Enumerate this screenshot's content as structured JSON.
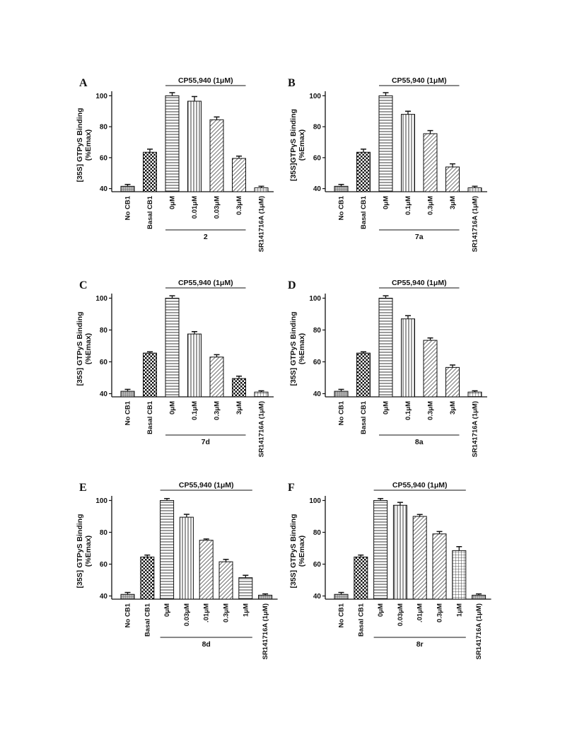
{
  "chart_data": [
    {
      "type": "bar",
      "panel": "A",
      "ylabel_line1": "[35S] GTPyS Binding",
      "ylabel_line2": "(%Emax)",
      "ylim": [
        38,
        102
      ],
      "yticks": [
        40,
        60,
        80,
        100
      ],
      "bracket_label": "CP55,940 (1μM)",
      "group_label": "2",
      "categories": [
        "No CB1",
        "Basal CB1",
        "0μM",
        "0.01μM",
        "0.03μM",
        "0.3μM",
        "SR141716A (1μM)"
      ],
      "values": [
        41.5,
        63.5,
        100,
        96.5,
        84.5,
        59.5,
        40.5
      ],
      "errors": [
        1.2,
        2,
        2,
        3,
        1.8,
        1.5,
        1
      ],
      "patterns": [
        "fine",
        "check",
        "hstripe",
        "vstripe",
        "diag",
        "diag",
        "grid"
      ]
    },
    {
      "type": "bar",
      "panel": "B",
      "ylabel_line1": "[35S]GTPγS Binding",
      "ylabel_line2": "(%Emax)",
      "ylim": [
        38,
        102
      ],
      "yticks": [
        40,
        60,
        80,
        100
      ],
      "bracket_label": "CP55,940 (1μM)",
      "group_label": "7a",
      "categories": [
        "No CB1",
        "Basal CB1",
        "0μM",
        "0.1μM",
        "0.3μM",
        "3μM",
        "SR141716A (1μM)"
      ],
      "values": [
        41.5,
        63.5,
        100,
        88,
        75.5,
        54,
        40.5
      ],
      "errors": [
        1.2,
        2,
        2,
        2,
        2,
        2,
        1
      ],
      "patterns": [
        "fine",
        "check",
        "hstripe",
        "vstripe",
        "diag",
        "diag",
        "grid"
      ]
    },
    {
      "type": "bar",
      "panel": "C",
      "ylabel_line1": "[35S] GTPyS Binding",
      "ylabel_line2": "(%Emax)",
      "ylim": [
        38,
        102
      ],
      "yticks": [
        40,
        60,
        80,
        100
      ],
      "bracket_label": "CP55,940 (1μM)",
      "group_label": "7d",
      "categories": [
        "No CB1",
        "Basal CB1",
        "0μM",
        "0.1μM",
        "0.3μM",
        "3μM",
        "SR141716A (1μM)"
      ],
      "values": [
        41.5,
        65.5,
        100,
        77.5,
        63,
        49.5,
        41
      ],
      "errors": [
        1.2,
        0.8,
        1.5,
        1.5,
        1.5,
        1.5,
        0.8
      ],
      "patterns": [
        "fine",
        "check",
        "hstripe",
        "vstripe",
        "diag",
        "check",
        "grid"
      ]
    },
    {
      "type": "bar",
      "panel": "D",
      "ylabel_line1": "[35S] GTPyS Binding",
      "ylabel_line2": "(%Emax)",
      "ylim": [
        38,
        102
      ],
      "yticks": [
        40,
        60,
        80,
        100
      ],
      "bracket_label": "CP55,940 (1μM)",
      "group_label": "8a",
      "categories": [
        "No CB1",
        "Basal CB1",
        "0μM",
        "0.1μM",
        "0.3μM",
        "3μM",
        "SR141716A (1μM)"
      ],
      "values": [
        41.5,
        65.5,
        100,
        87,
        73.5,
        56.5,
        41
      ],
      "errors": [
        1.2,
        0.8,
        1.5,
        2,
        1.5,
        1.5,
        0.8
      ],
      "patterns": [
        "fine",
        "check",
        "hstripe",
        "vstripe",
        "diag",
        "diag",
        "grid"
      ]
    },
    {
      "type": "bar",
      "panel": "E",
      "ylabel_line1": "[35S] GTPyS Binding",
      "ylabel_line2": "(%Emax)",
      "ylim": [
        38,
        102
      ],
      "yticks": [
        40,
        60,
        80,
        100
      ],
      "bracket_label": "CP55,940 (1μM)",
      "group_label": "8d",
      "categories": [
        "No CB1",
        "Basal CB1",
        "0μM",
        "0.03μM",
        ".01μM",
        "0.3μM",
        "1μM",
        "SR141716A (1μM)"
      ],
      "values": [
        41,
        64.5,
        100,
        89.5,
        75,
        61.5,
        51.5,
        40.5
      ],
      "errors": [
        1.2,
        1.2,
        1.2,
        1.8,
        0.8,
        1.5,
        1.5,
        0.8
      ],
      "patterns": [
        "fine",
        "check",
        "hstripe",
        "vstripe",
        "diag",
        "diag",
        "hstripe",
        "fine"
      ]
    },
    {
      "type": "bar",
      "panel": "F",
      "ylabel_line1": "[35S] GTPyS Binding",
      "ylabel_line2": "(%Emax)",
      "ylim": [
        38,
        102
      ],
      "yticks": [
        40,
        60,
        80,
        100
      ],
      "bracket_label": "CP55,940 (1μM)",
      "group_label": "8r",
      "categories": [
        "No CB1",
        "Basal CB1",
        "0μM",
        "0.03μM",
        ".01μM",
        "0.3μM",
        "1μM",
        "SR141716A (1μM)"
      ],
      "values": [
        41,
        64.5,
        100,
        97,
        90,
        79,
        68.5,
        40.5
      ],
      "errors": [
        1.2,
        1.2,
        1.2,
        1.8,
        1.2,
        1.5,
        2.5,
        0.8
      ],
      "patterns": [
        "fine",
        "check",
        "hstripe",
        "vstripe",
        "diag",
        "diag",
        "grid",
        "fine"
      ]
    }
  ]
}
